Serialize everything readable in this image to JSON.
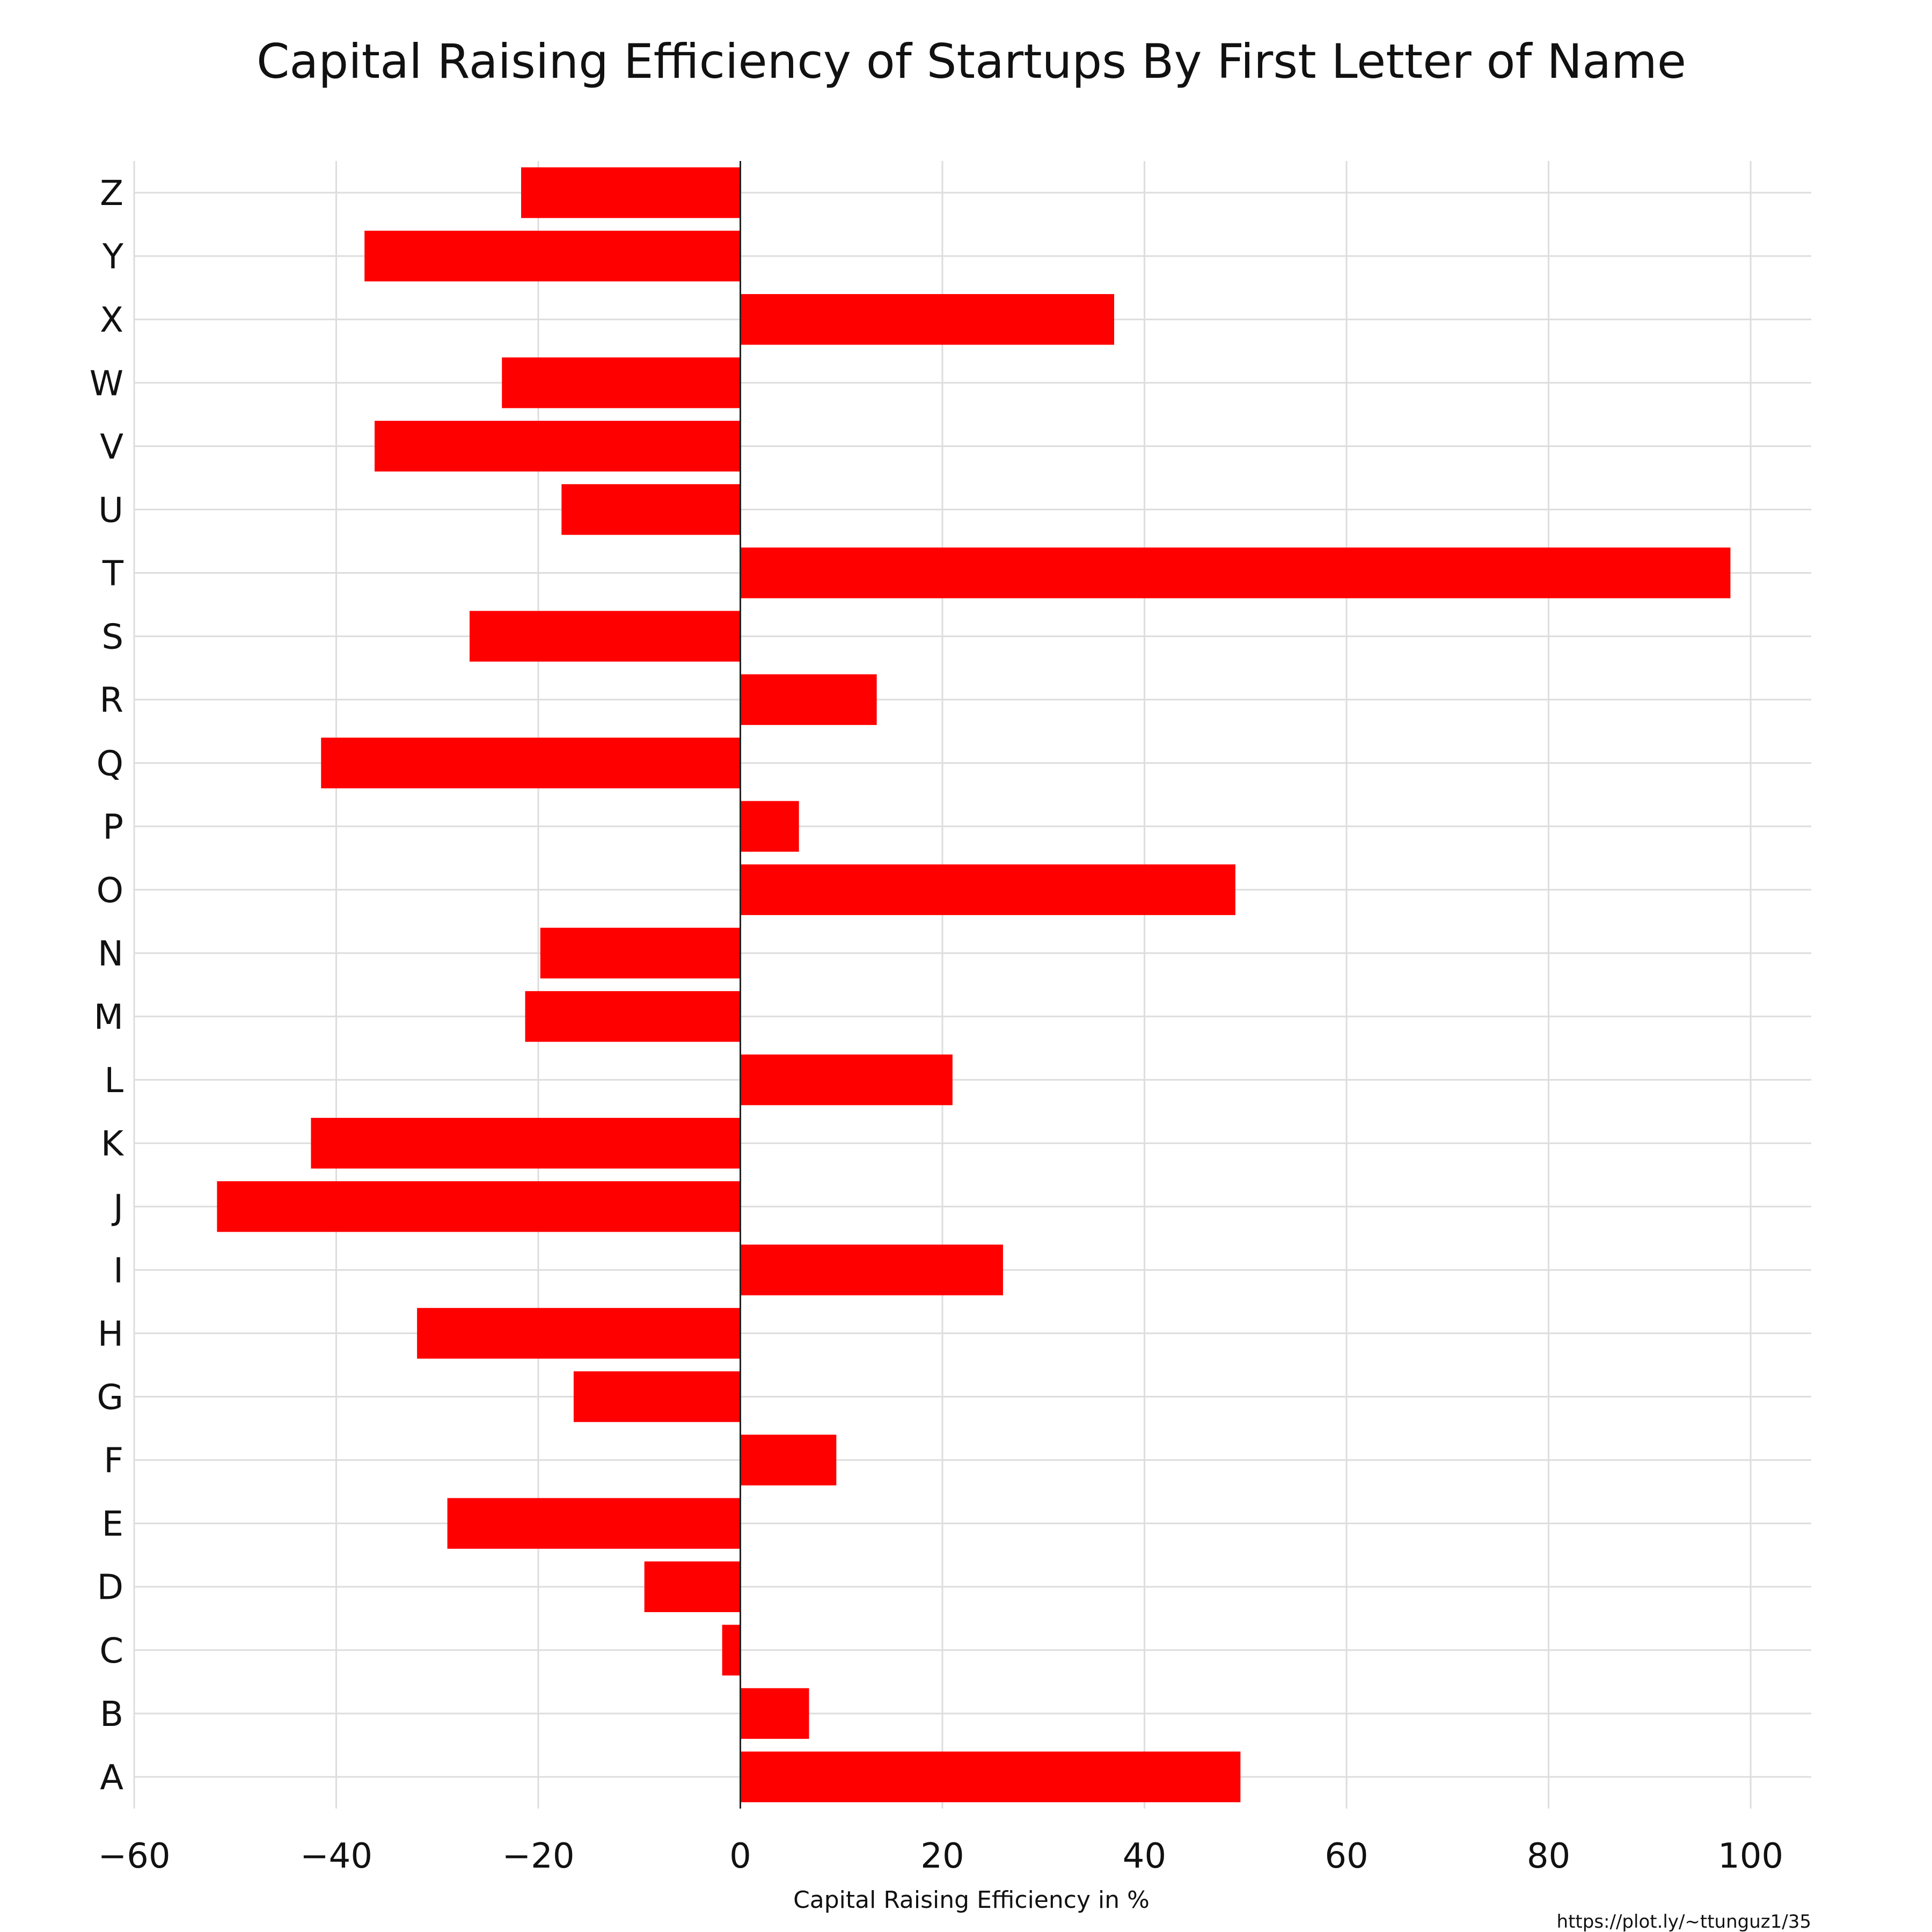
{
  "chart_data": {
    "type": "bar",
    "orientation": "horizontal",
    "title": "Capital Raising Efficiency of Startups By First Letter of Name",
    "xlabel": "Capital Raising Efficiency in %",
    "ylabel": "",
    "categories": [
      "A",
      "B",
      "C",
      "D",
      "E",
      "F",
      "G",
      "H",
      "I",
      "J",
      "K",
      "L",
      "M",
      "N",
      "O",
      "P",
      "Q",
      "R",
      "S",
      "T",
      "U",
      "V",
      "W",
      "X",
      "Y",
      "Z"
    ],
    "values": [
      49.5,
      6.8,
      -1.8,
      -9.5,
      -29,
      9.5,
      -16.5,
      -32,
      26,
      -51.8,
      -42.5,
      21,
      -21.3,
      -19.8,
      49,
      5.8,
      -41.5,
      13.5,
      -26.8,
      98,
      -17.7,
      -36.2,
      -23.6,
      37,
      -37.2,
      -21.7
    ],
    "xlim": [
      -60,
      106
    ],
    "xticks": [
      -60,
      -40,
      -20,
      0,
      20,
      40,
      60,
      80,
      100
    ],
    "xtick_labels": [
      "−60",
      "−40",
      "−20",
      "0",
      "20",
      "40",
      "60",
      "80",
      "100"
    ],
    "grid": true,
    "bar_color": "#ff0000",
    "credit": "https://plot.ly/~ttunguz1/35"
  }
}
